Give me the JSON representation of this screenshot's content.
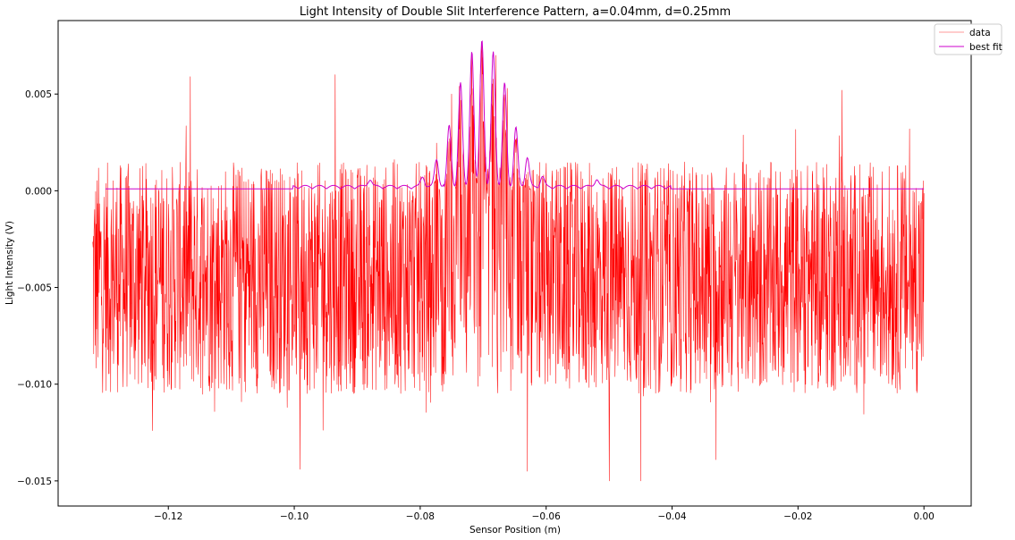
{
  "chart_data": {
    "type": "line",
    "title": "Light Intensity of Double Slit Interference Pattern, a=0.04mm, d=0.25mm",
    "xlabel": "Sensor Position (m)",
    "ylabel": "Light Intensity (V)",
    "xlim": [
      -0.1375,
      0.0075
    ],
    "ylim": [
      -0.0163,
      0.0088
    ],
    "x_ticks": [
      -0.12,
      -0.1,
      -0.08,
      -0.06,
      -0.04,
      -0.02,
      0.0
    ],
    "x_tick_labels": [
      "−0.12",
      "−0.10",
      "−0.08",
      "−0.06",
      "−0.04",
      "−0.02",
      "0.00"
    ],
    "y_ticks": [
      0.005,
      0.0,
      -0.005,
      -0.01,
      -0.015
    ],
    "y_tick_labels": [
      "0.005",
      "0.000",
      "−0.005",
      "−0.010",
      "−0.015"
    ],
    "grid": false,
    "legend": {
      "placement": "top-right"
    },
    "series": [
      {
        "name": "data",
        "color": "#ff0000",
        "x_range": [
          -0.132,
          0.0
        ],
        "num_points": 2600,
        "baseline_mean": -0.0045,
        "noise_range": [
          -0.0105,
          0.0015
        ],
        "extreme_spikes": [
          {
            "x": -0.1225,
            "y": -0.0124
          },
          {
            "x": -0.1165,
            "y": 0.0059
          },
          {
            "x": -0.0991,
            "y": -0.0144
          },
          {
            "x": -0.0935,
            "y": 0.006
          },
          {
            "x": -0.063,
            "y": -0.0145
          },
          {
            "x": -0.05,
            "y": -0.015
          },
          {
            "x": -0.045,
            "y": -0.015
          },
          {
            "x": -0.033,
            "y": -0.0139
          },
          {
            "x": -0.013,
            "y": 0.0052
          },
          {
            "x": -0.0023,
            "y": 0.0032
          }
        ],
        "central_peaks": [
          {
            "x": -0.0718,
            "y": 0.0071
          },
          {
            "x": -0.0702,
            "y": 0.0076
          },
          {
            "x": -0.068,
            "y": 0.007
          },
          {
            "x": -0.0738,
            "y": 0.0054
          },
          {
            "x": -0.0662,
            "y": 0.0053
          },
          {
            "x": -0.075,
            "y": 0.005
          }
        ]
      },
      {
        "name": "best fit",
        "color": "#cc00cc",
        "x_range": [
          -0.13,
          0.0
        ],
        "baseline": 0.0001,
        "center": -0.0702,
        "peaks": [
          {
            "x": -0.0702,
            "y": 0.0077
          },
          {
            "x": -0.0718,
            "y": 0.0071
          },
          {
            "x": -0.0684,
            "y": 0.0071
          },
          {
            "x": -0.0736,
            "y": 0.0055
          },
          {
            "x": -0.0666,
            "y": 0.0055
          },
          {
            "x": -0.0754,
            "y": 0.0033
          },
          {
            "x": -0.0648,
            "y": 0.0032
          },
          {
            "x": -0.0774,
            "y": 0.0014
          },
          {
            "x": -0.063,
            "y": 0.0015
          },
          {
            "x": -0.0796,
            "y": 0.0005
          },
          {
            "x": -0.0606,
            "y": 0.0005
          },
          {
            "x": -0.088,
            "y": 0.0004
          },
          {
            "x": -0.052,
            "y": 0.0004
          }
        ]
      }
    ]
  }
}
